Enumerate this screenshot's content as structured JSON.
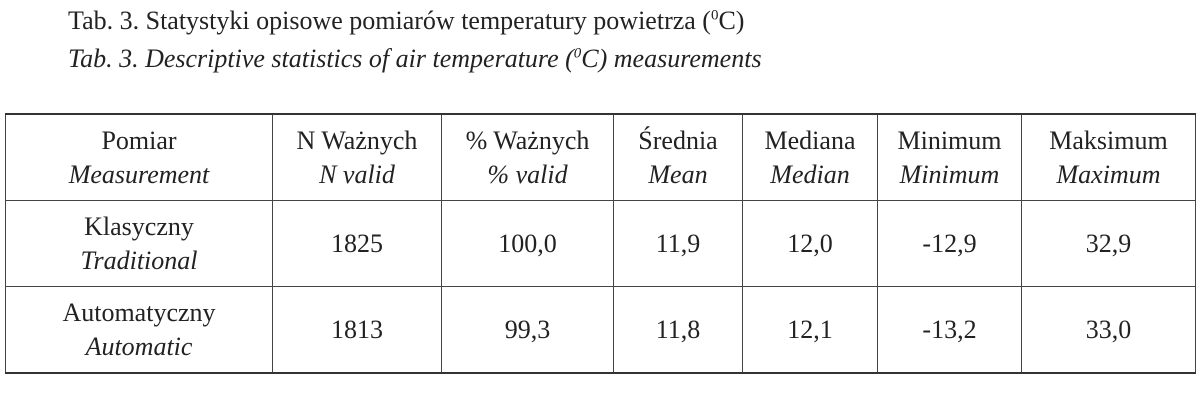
{
  "caption": {
    "polish": {
      "before": "Tab. 3. Statystyki opisowe pomiarów temperatury powietrza (",
      "superscript": "0",
      "after": "C)"
    },
    "english": {
      "before": "Tab. 3. Descriptive statistics of air temperature (",
      "superscript": "0",
      "after": "C) measurements"
    }
  },
  "table": {
    "header": [
      {
        "polish": "Pomiar",
        "english": "Measurement"
      },
      {
        "polish": "N Ważnych",
        "english": "N valid"
      },
      {
        "polish": "% Ważnych",
        "english": "% valid"
      },
      {
        "polish": "Średnia",
        "english": "Mean"
      },
      {
        "polish": "Mediana",
        "english": "Median"
      },
      {
        "polish": "Minimum",
        "english": "Minimum"
      },
      {
        "polish": "Maksimum",
        "english": "Maximum"
      }
    ],
    "rows": [
      {
        "name": {
          "polish": "Klasyczny",
          "english": "Traditional"
        },
        "cells": [
          "1825",
          "100,0",
          "11,9",
          "12,0",
          "-12,9",
          "32,9"
        ]
      },
      {
        "name": {
          "polish": "Automatyczny",
          "english": "Automatic"
        },
        "cells": [
          "1813",
          "99,3",
          "11,8",
          "12,1",
          "-13,2",
          "33,0"
        ]
      }
    ]
  }
}
